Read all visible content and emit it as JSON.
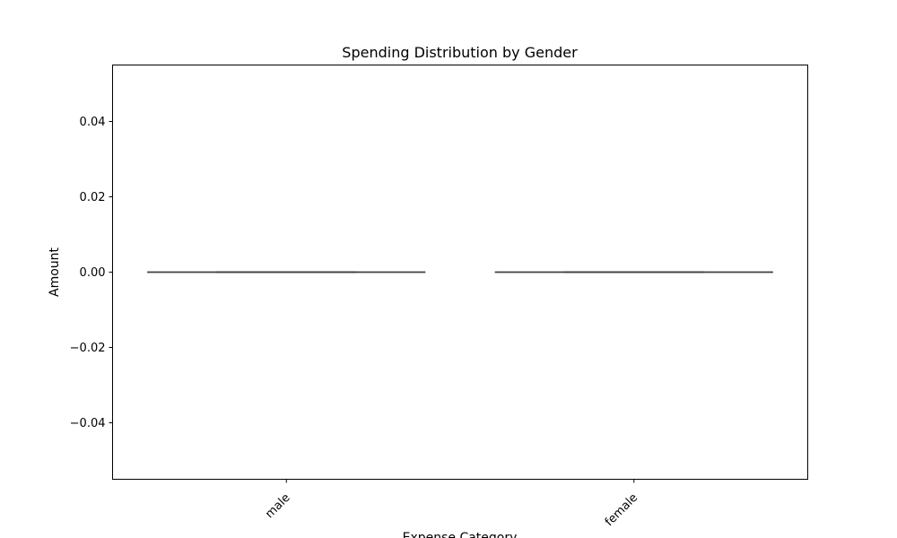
{
  "chart_data": {
    "type": "box",
    "title": "Spending Distribution by Gender",
    "xlabel": "Expense Category",
    "ylabel": "Amount",
    "categories": [
      "male",
      "female"
    ],
    "ylim": [
      -0.055,
      0.055
    ],
    "yticks": [
      0.04,
      0.02,
      0.0,
      -0.02,
      -0.04
    ],
    "ytick_labels": [
      "0.04",
      "0.02",
      "0.00",
      "−0.02",
      "−0.04"
    ],
    "xtick_rotation_deg": -45,
    "boxes": [
      {
        "category": "male",
        "min": 0,
        "q1": 0,
        "median": 0,
        "q3": 0,
        "max": 0
      },
      {
        "category": "female",
        "min": 0,
        "q1": 0,
        "median": 0,
        "q3": 0,
        "max": 0
      }
    ],
    "grid": false,
    "line_color": "#3f3f3f"
  }
}
